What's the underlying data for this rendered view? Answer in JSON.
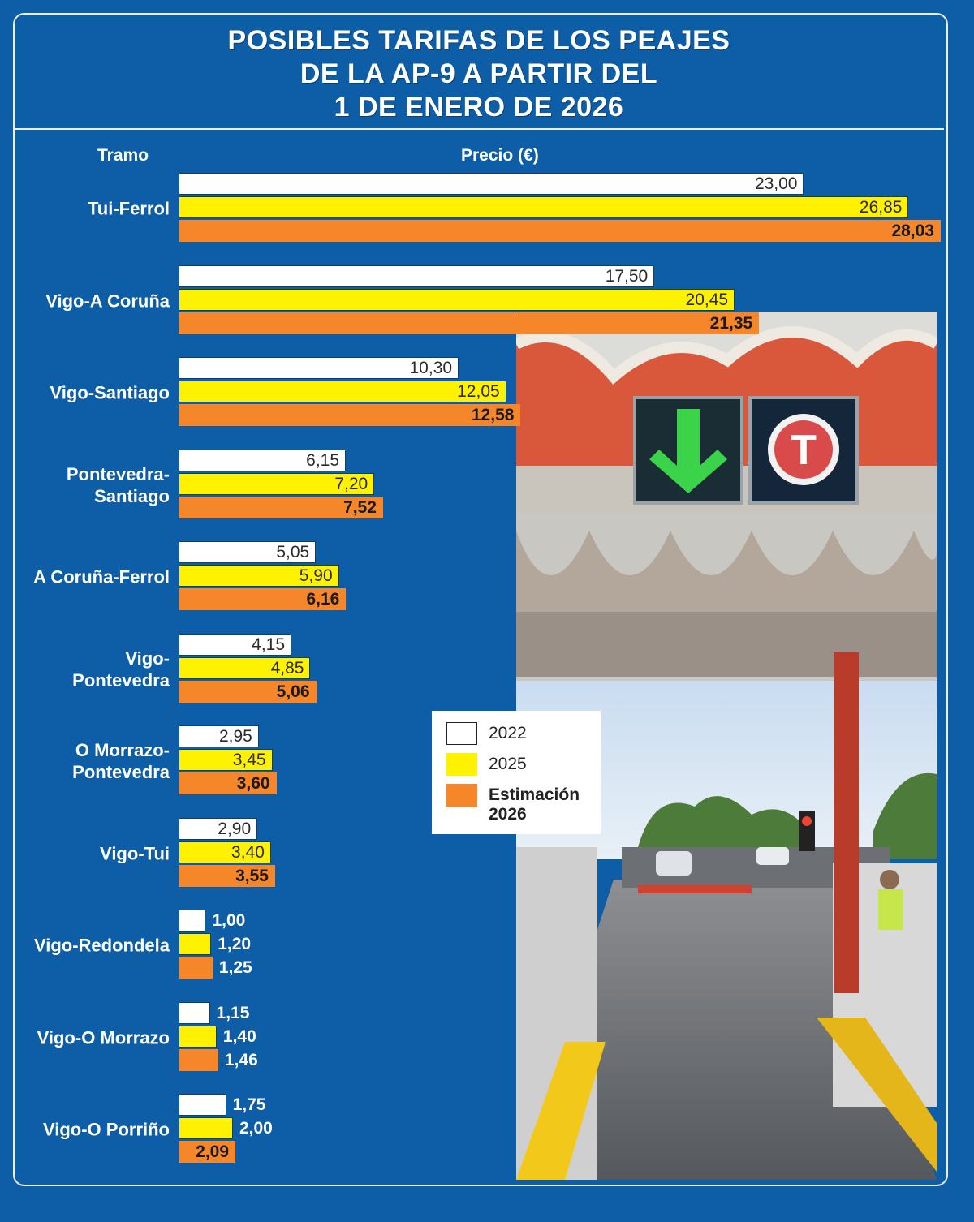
{
  "title_lines": [
    "POSIBLES TARIFAS DE LOS PEAJES",
    "DE LA AP-9 A PARTIR DEL",
    "1 DE ENERO DE 2026"
  ],
  "header": {
    "tramo": "Tramo",
    "precio": "Precio (€)"
  },
  "legend": {
    "items": [
      {
        "label": "2022",
        "color": "#ffffff"
      },
      {
        "label": "2025",
        "color": "#fef200"
      },
      {
        "label": "Estimación 2026",
        "color": "#f5872a"
      }
    ]
  },
  "photo": {
    "sign_glyph": "T"
  },
  "chart_data": {
    "type": "bar",
    "orientation": "horizontal",
    "title": "POSIBLES TARIFAS DE LOS PEAJES DE LA AP-9 A PARTIR DEL 1 DE ENERO DE 2026",
    "xlabel": "Precio (€)",
    "ylabel": "Tramo",
    "categories": [
      "Tui-Ferrol",
      "Vigo-A Coruña",
      "Vigo-Santiago",
      "Pontevedra-Santiago",
      "A Coruña-Ferrol",
      "Vigo-Pontevedra",
      "O Morrazo-Pontevedra",
      "Vigo-Tui",
      "Vigo-Redondela",
      "Vigo-O Morrazo",
      "Vigo-O Porriño"
    ],
    "category_lines": [
      [
        "Tui-Ferrol"
      ],
      [
        "Vigo-A Coruña"
      ],
      [
        "Vigo-Santiago"
      ],
      [
        "Pontevedra-",
        "Santiago"
      ],
      [
        "A Coruña-Ferrol"
      ],
      [
        "Vigo-",
        "Pontevedra"
      ],
      [
        "O Morrazo-",
        "Pontevedra"
      ],
      [
        "Vigo-Tui"
      ],
      [
        "Vigo-Redondela"
      ],
      [
        "Vigo-O Morrazo"
      ],
      [
        "Vigo-O Porriño"
      ]
    ],
    "series": [
      {
        "name": "2022",
        "color": "#ffffff",
        "values": [
          23.0,
          17.5,
          10.3,
          6.15,
          5.05,
          4.15,
          2.95,
          2.9,
          1.0,
          1.15,
          1.75
        ],
        "labels": [
          "23,00",
          "17,50",
          "10,30",
          "6,15",
          "5,05",
          "4,15",
          "2,95",
          "2,90",
          "1,00",
          "1,15",
          "1,75"
        ]
      },
      {
        "name": "2025",
        "color": "#fef200",
        "values": [
          26.85,
          20.45,
          12.05,
          7.2,
          5.9,
          4.85,
          3.45,
          3.4,
          1.2,
          1.4,
          2.0
        ],
        "labels": [
          "26,85",
          "20,45",
          "12,05",
          "7,20",
          "5,90",
          "4,85",
          "3,45",
          "3,40",
          "1,20",
          "1,40",
          "2,00"
        ]
      },
      {
        "name": "Estimación 2026",
        "color": "#f5872a",
        "values": [
          28.03,
          21.35,
          12.58,
          7.52,
          6.16,
          5.06,
          3.6,
          3.55,
          1.25,
          1.46,
          2.09
        ],
        "labels": [
          "28,03",
          "21,35",
          "12,58",
          "7,52",
          "6,16",
          "5,06",
          "3,60",
          "3,55",
          "1,25",
          "1,46",
          "2,09"
        ]
      }
    ],
    "xlim": [
      0,
      28.03
    ],
    "legend_position": "lower-middle",
    "grid": false
  }
}
